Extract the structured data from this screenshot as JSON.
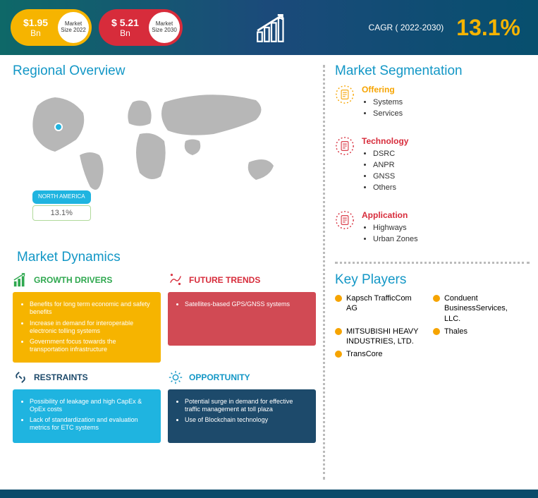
{
  "header": {
    "pill1": {
      "value": "$1.95",
      "unit": "Bn",
      "badge1": "Market",
      "badge2": "Size 2022",
      "bg": "#f6b400"
    },
    "pill2": {
      "value": "$ 5.21",
      "unit": "Bn",
      "badge1": "Market",
      "badge2": "Size 2030",
      "bg": "#d72c3b"
    },
    "cagr_label": "CAGR ( 2022-2030)",
    "cagr_value": "13.1%",
    "gradient_from": "#0e6868",
    "gradient_to": "#074f6e"
  },
  "regional": {
    "title": "Regional Overview",
    "region": {
      "name": "NORTH AMERICA",
      "pct": "13.1%"
    },
    "map_fill": "#b7b7b7",
    "marker_color": "#1fb4e0"
  },
  "dynamics": {
    "title": "Market Dynamics",
    "cells": [
      {
        "head": "GROWTH DRIVERS",
        "head_color": "#2fa84f",
        "body_bg": "#f6b400",
        "icon": "bars-up",
        "items": [
          "Benefits for long term economic and safety benefits",
          "Increase in demand for interoperable electronic tolling systems",
          "Government focus towards the transportation infrastructure"
        ]
      },
      {
        "head": "FUTURE TRENDS",
        "head_color": "#d72c3b",
        "body_bg": "#d14a54",
        "icon": "spark",
        "items": [
          "Satellites-based GPS/GNSS systems"
        ]
      },
      {
        "head": "RESTRAINTS",
        "head_color": "#1d4a6b",
        "body_bg": "#1fb4e0",
        "icon": "link-break",
        "items": [
          "Possibility of leakage and high CapEx & OpEx costs",
          "Lack of standardization and evaluation metrics for ETC systems"
        ]
      },
      {
        "head": "OPPORTUNITY",
        "head_color": "#1397c6",
        "body_bg": "#1d4a6b",
        "icon": "gear",
        "items": [
          "Potential surge in demand for effective traffic management at toll plaza",
          "Use of Blockchain technology"
        ]
      }
    ]
  },
  "segmentation": {
    "title": "Market Segmentation",
    "groups": [
      {
        "label": "Offering",
        "color": "#f6a400",
        "icon": "doc",
        "items": [
          "Systems",
          "Services"
        ]
      },
      {
        "label": "Technology",
        "color": "#d72c3b",
        "icon": "doc",
        "items": [
          "DSRC",
          "ANPR",
          "GNSS",
          "Others"
        ]
      },
      {
        "label": "Application",
        "color": "#d72c3b",
        "icon": "doc",
        "items": [
          "Highways",
          "Urban Zones"
        ]
      }
    ]
  },
  "key_players": {
    "title": "Key Players",
    "items": [
      "Kapsch TrafficCom AG",
      "Conduent BusinessServices, LLC.",
      "MITSUBISHI HEAVY INDUSTRIES, LTD.",
      "Thales",
      "TransCore"
    ]
  },
  "colors": {
    "title": "#1397c6",
    "dot_border": "#bbb",
    "footer": "#0a4b6a",
    "kp_dot": "#f6a400"
  }
}
